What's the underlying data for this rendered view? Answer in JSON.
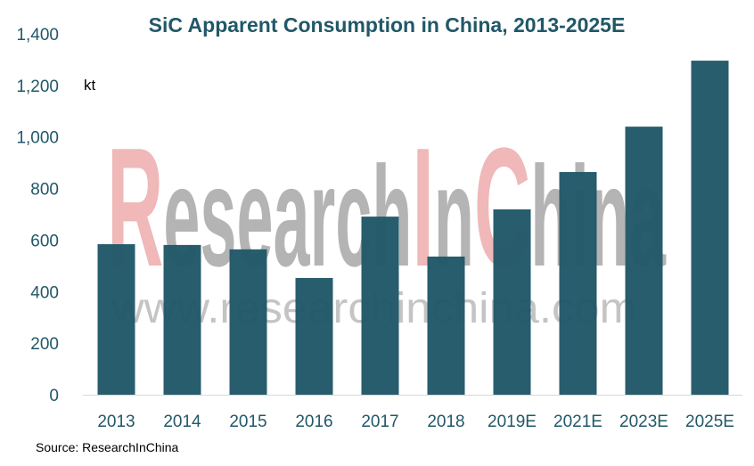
{
  "chart_data": {
    "type": "bar",
    "title": "SiC Apparent Consumption in China, 2013-2025E",
    "ylabel": "kt",
    "xlabel": "",
    "categories": [
      "2013",
      "2014",
      "2015",
      "2016",
      "2017",
      "2018",
      "2019E",
      "2021E",
      "2023E",
      "2025E"
    ],
    "values": [
      584,
      581,
      564,
      453,
      691,
      536,
      719,
      864,
      1040,
      1296
    ],
    "ylim": [
      0,
      1400
    ],
    "yticks": [
      0,
      200,
      400,
      600,
      800,
      1000,
      1200,
      1400
    ],
    "ytick_labels": [
      "0",
      "200",
      "400",
      "600",
      "800",
      "1,000",
      "1,200",
      "1,400"
    ],
    "grid": false,
    "bar_color": "#215868",
    "title_color": "#215868"
  },
  "source": "Source: ResearchInChina",
  "watermark": {
    "logo": "ResearchInChina",
    "url": "www.researchinchina.com"
  }
}
